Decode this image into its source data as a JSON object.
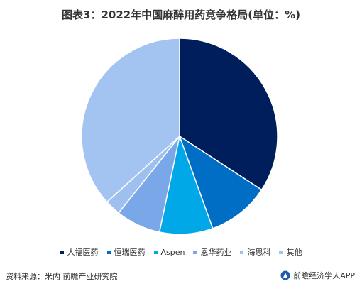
{
  "chart_data": {
    "type": "pie",
    "title": "图表3：2022年中国麻醉用药竞争格局(单位：%)",
    "categories": [
      "人福医药",
      "恒瑞医药",
      "Aspen",
      "恩华药业",
      "海思科",
      "其他"
    ],
    "values": [
      34.2,
      10.3,
      8.8,
      7.4,
      2.6,
      36.7
    ],
    "colors": [
      "#001d5c",
      "#006ec4",
      "#00a8e8",
      "#7aa7e8",
      "#9fbfee",
      "#a3c4f0"
    ],
    "legend": "bottom"
  },
  "footer": {
    "source": "资料来源：米内 前瞻产业研究院",
    "brand": "前瞻经济学人APP"
  }
}
